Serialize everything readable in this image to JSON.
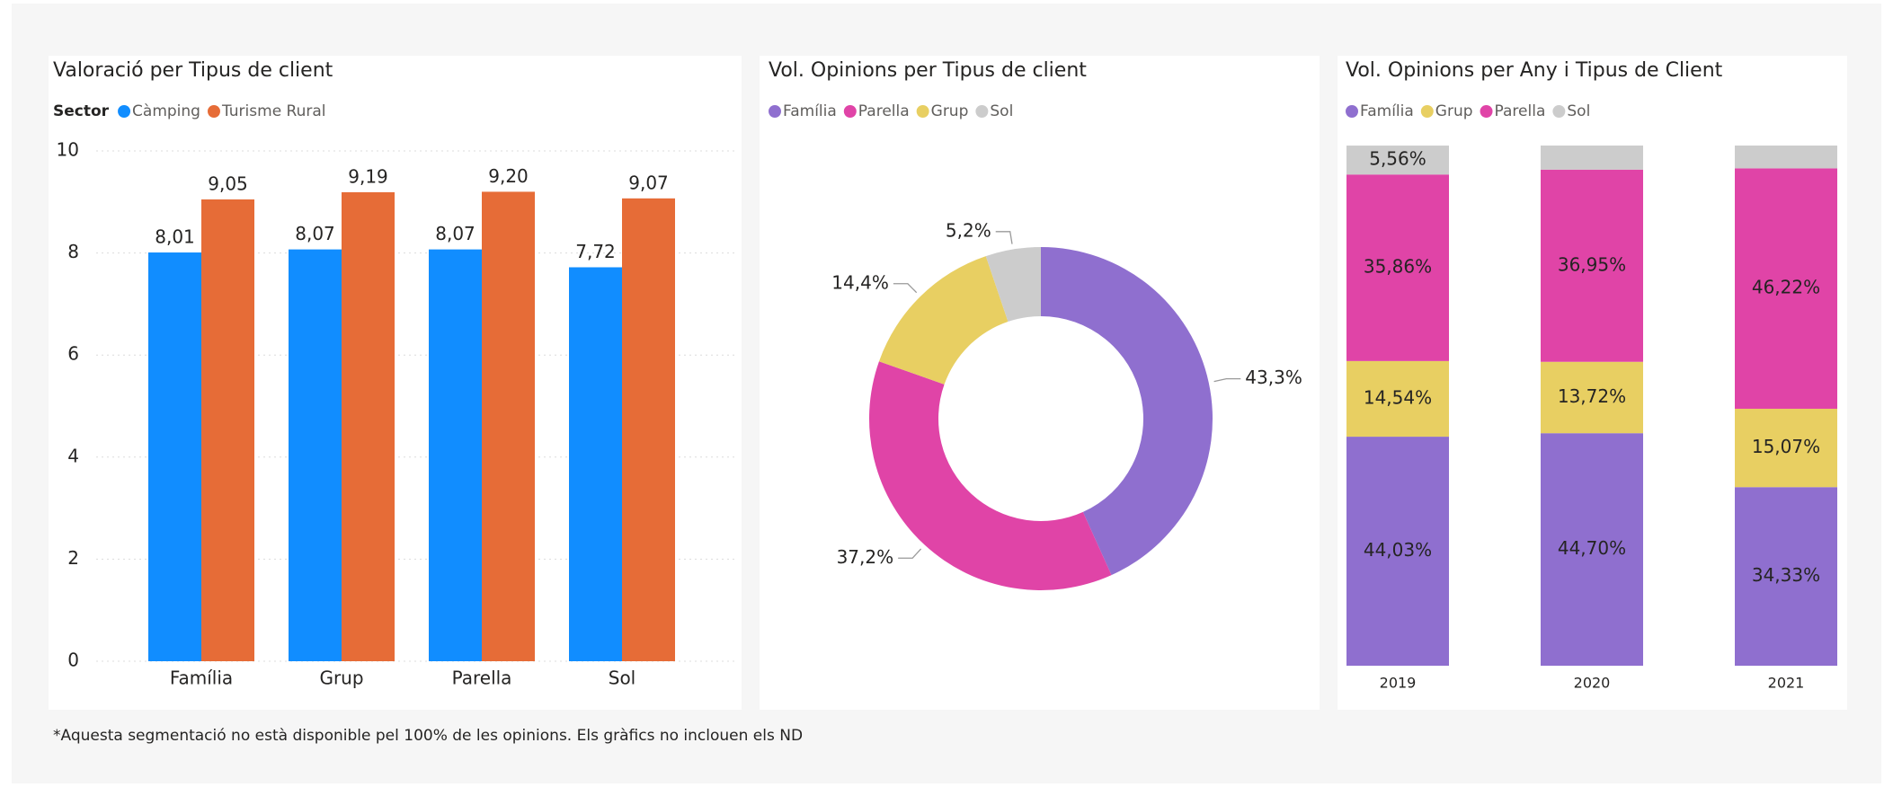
{
  "chart_data": [
    {
      "type": "bar",
      "title": "Valoració per Tipus de client",
      "legend_title": "Sector",
      "categories": [
        "Família",
        "Grup",
        "Parella",
        "Sol"
      ],
      "series": [
        {
          "name": "Càmping",
          "color": "#118dff",
          "values": [
            8.01,
            8.07,
            8.07,
            7.72
          ],
          "value_labels": [
            "8,01",
            "8,07",
            "8,07",
            "7,72"
          ]
        },
        {
          "name": "Turisme Rural",
          "color": "#e66c37",
          "values": [
            9.05,
            9.19,
            9.2,
            9.07
          ],
          "value_labels": [
            "9,05",
            "9,19",
            "9,20",
            "9,07"
          ]
        }
      ],
      "ylim": [
        0,
        10
      ],
      "yticks": [
        0,
        2,
        4,
        6,
        8,
        10
      ],
      "grid": true
    },
    {
      "type": "donut",
      "title": "Vol. Opinions per Tipus de client",
      "categories": [
        "Família",
        "Parella",
        "Grup",
        "Sol"
      ],
      "values": [
        43.3,
        37.2,
        14.4,
        5.2
      ],
      "value_labels": [
        "43,3%",
        "37,2%",
        "14,4%",
        "5,2%"
      ],
      "colors": [
        "#8f6fcf",
        "#e044a7",
        "#e8cf62",
        "#cccccc"
      ]
    },
    {
      "type": "bar",
      "stacked": true,
      "title": "Vol. Opinions per Any i Tipus de Client",
      "categories": [
        "2019",
        "2020",
        "2021"
      ],
      "series": [
        {
          "name": "Família",
          "color": "#8f6fcf",
          "values": [
            44.03,
            44.7,
            34.33
          ],
          "value_labels": [
            "44,03%",
            "44,70%",
            "34,33%"
          ]
        },
        {
          "name": "Grup",
          "color": "#e8cf62",
          "values": [
            14.54,
            13.72,
            15.07
          ],
          "value_labels": [
            "14,54%",
            "13,72%",
            "15,07%"
          ]
        },
        {
          "name": "Parella",
          "color": "#e044a7",
          "values": [
            35.86,
            36.95,
            46.22
          ],
          "value_labels": [
            "35,86%",
            "36,95%",
            "46,22%"
          ]
        },
        {
          "name": "Sol",
          "color": "#cccccc",
          "values": [
            5.56,
            4.63,
            4.38
          ],
          "value_labels": [
            "5,56%",
            null,
            null
          ]
        }
      ],
      "ylim": [
        0,
        100
      ]
    }
  ],
  "footnote": "*Aquesta segmentació no està disponible pel 100% de les opinions. Els gràfics no inclouen els ND"
}
